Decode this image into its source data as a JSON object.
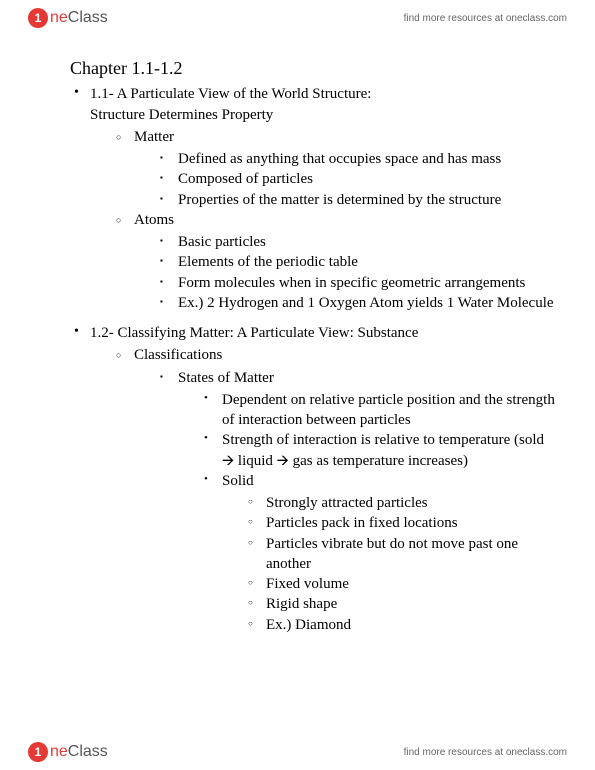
{
  "brand": {
    "badge": "1",
    "part1": "ne",
    "part2": "Class"
  },
  "header_link": "find more resources at oneclass.com",
  "footer_link": "find more resources at oneclass.com",
  "title": "Chapter 1.1-1.2",
  "s1": {
    "head1": "1.1- A Particulate View of the World Structure:",
    "head2": "Structure Determines Property",
    "matter": {
      "label": "Matter",
      "i1": "Defined as anything that occupies space and has mass",
      "i2": "Composed of particles",
      "i3": "Properties of the matter is determined by the structure"
    },
    "atoms": {
      "label": "Atoms",
      "i1": "Basic particles",
      "i2": "Elements of the periodic table",
      "i3": "Form molecules when in specific geometric arrangements",
      "i4": "Ex.) 2 Hydrogen and 1 Oxygen Atom yields 1 Water Molecule"
    }
  },
  "s2": {
    "head": "1.2- Classifying Matter: A Particulate View: Substance",
    "class_label": "Classifications",
    "states": {
      "label": "States of Matter",
      "i1": "Dependent on relative particle position and the strength of interaction between particles",
      "i2": "Strength of interaction is relative to temperature (sold 🡪 liquid 🡪 gas as temperature increases)",
      "solid": {
        "label": "Solid",
        "i1": "Strongly attracted particles",
        "i2": "Particles pack in fixed locations",
        "i3": "Particles vibrate but do not move past one another",
        "i4": "Fixed volume",
        "i5": "Rigid shape",
        "i6": "Ex.) Diamond"
      }
    }
  }
}
